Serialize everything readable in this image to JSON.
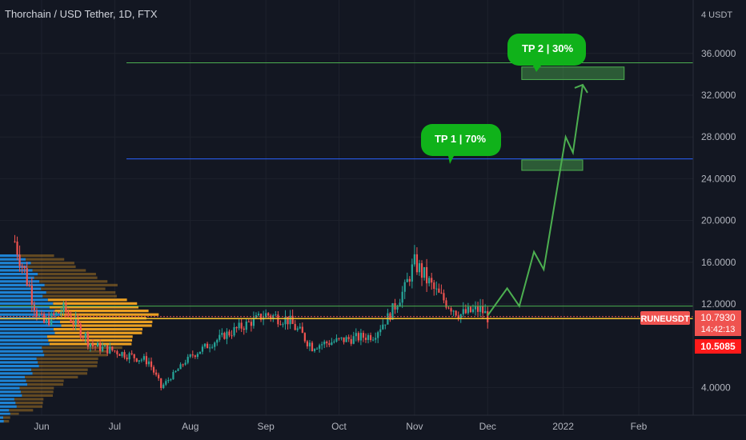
{
  "header": {
    "title": "Thorchain / USD Tether, 1D, FTX"
  },
  "price_scale": {
    "currency_label": "4 USDT",
    "ticks": [
      "36.0000",
      "32.0000",
      "28.0000",
      "24.0000",
      "20.0000",
      "16.0000",
      "12.0000",
      "4.0000"
    ]
  },
  "time_axis": {
    "ticks": [
      "Jun",
      "Jul",
      "Aug",
      "Sep",
      "Oct",
      "Nov",
      "Dec",
      "2022",
      "Feb"
    ]
  },
  "badges": {
    "symbol": "RUNEUSDT",
    "last_price": "10.7930",
    "countdown": "14:42:13",
    "second_price": "10.5085"
  },
  "annotations": {
    "tp1": "TP 1  |  70%",
    "tp2": "TP 2  |  30%"
  },
  "colors": {
    "background": "#131722",
    "up": "#26a69a",
    "down": "#ef5350",
    "green_line": "#4caf50",
    "blue_line": "#2962ff",
    "yellow_line": "#f7c530",
    "bubble": "#10b21a",
    "profile_blue": "#2196f3",
    "profile_orange": "#f5a623"
  },
  "chart_data": {
    "type": "candlestick",
    "symbol": "RUNEUSDT",
    "ylim": [
      1.0,
      38.5
    ],
    "levels": [
      {
        "kind": "green",
        "value": 35.1
      },
      {
        "kind": "blue",
        "value": 25.9
      },
      {
        "kind": "green",
        "value": 11.8
      },
      {
        "kind": "yellow",
        "value": 10.6
      }
    ],
    "target_zones": [
      {
        "x_start": "Dec 15",
        "x_end": "Jan 26",
        "y_low": 33.5,
        "y_high": 34.7
      },
      {
        "x_start": "Dec 15",
        "x_end": "Jan 9",
        "y_low": 24.8,
        "y_high": 25.8
      }
    ],
    "projection": {
      "type": "arrow",
      "description": "projected path from current price to TP 2",
      "points": [
        {
          "x": "Dec 1",
          "y": 10.9
        },
        {
          "x": "Dec 9",
          "y": 13.5
        },
        {
          "x": "Dec 14",
          "y": 11.8
        },
        {
          "x": "Dec 20",
          "y": 17.0
        },
        {
          "x": "Dec 24",
          "y": 15.3
        },
        {
          "x": "Jan 2",
          "y": 28.0
        },
        {
          "x": "Jan 5",
          "y": 26.5
        },
        {
          "x": "Jan 9",
          "y": 33.0
        }
      ]
    },
    "candles_close_approx": [
      {
        "x": "May 20",
        "y": 18.0
      },
      {
        "x": "Jun 1",
        "y": 10.0
      },
      {
        "x": "Jun 10",
        "y": 11.5
      },
      {
        "x": "Jun 22",
        "y": 8.0
      },
      {
        "x": "Jul 1",
        "y": 7.5
      },
      {
        "x": "Jul 15",
        "y": 6.5
      },
      {
        "x": "Jul 20",
        "y": 4.0
      },
      {
        "x": "Aug 1",
        "y": 7.0
      },
      {
        "x": "Aug 15",
        "y": 9.0
      },
      {
        "x": "Sep 1",
        "y": 11.0
      },
      {
        "x": "Sep 10",
        "y": 10.5
      },
      {
        "x": "Sep 20",
        "y": 8.0
      },
      {
        "x": "Oct 1",
        "y": 8.5
      },
      {
        "x": "Oct 15",
        "y": 9.0
      },
      {
        "x": "Oct 22",
        "y": 11.0
      },
      {
        "x": "Oct 28",
        "y": 13.5
      },
      {
        "x": "Nov 1",
        "y": 16.0
      },
      {
        "x": "Nov 10",
        "y": 13.0
      },
      {
        "x": "Nov 20",
        "y": 11.0
      },
      {
        "x": "Nov 28",
        "y": 11.5
      },
      {
        "x": "Dec 1",
        "y": 10.8
      }
    ]
  }
}
